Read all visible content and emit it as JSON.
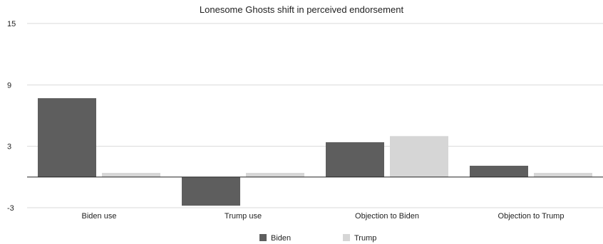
{
  "chart_data": {
    "type": "bar",
    "title": "Lonesome Ghosts shift in perceived endorsement",
    "categories": [
      "Biden use",
      "Trump use",
      "Objection to Biden",
      "Objection to Trump"
    ],
    "series": [
      {
        "name": "Biden",
        "values": [
          7.7,
          -2.8,
          3.4,
          1.1
        ],
        "color": "#5e5e5e"
      },
      {
        "name": "Trump",
        "values": [
          0.4,
          0.4,
          4.0,
          0.4
        ],
        "color": "#d6d6d6"
      }
    ],
    "yticks": [
      15,
      9,
      3,
      -3
    ],
    "ylim": [
      -3,
      15
    ],
    "grid": true,
    "legend_position": "bottom-center"
  }
}
